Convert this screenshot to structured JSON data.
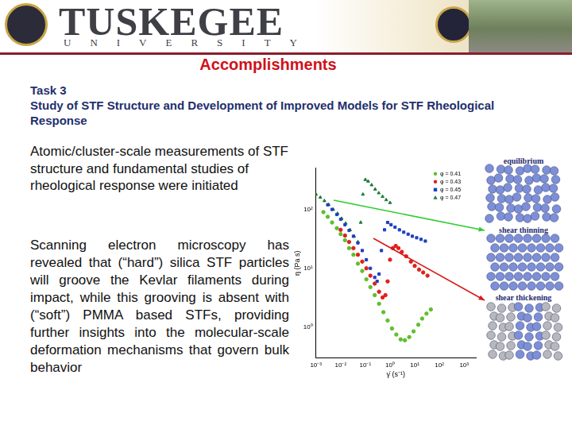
{
  "header": {
    "name": "TUSKEGEE",
    "subtitle": "UNIVERSITY"
  },
  "title": "Accomplishments",
  "task": [
    "Task 3",
    "Study of STF Structure and Development of Improved Models for STF Rheological Response"
  ],
  "paragraphs": [
    "Atomic/cluster-scale measurements of STF structure and fundamental studies of rheological response were initiated",
    "Scanning electron microscopy has revealed that (“hard”) silica STF particles will groove the Kevlar filaments during impact, while this grooving is absent with (“soft”) PMMA based STFs, providing further insights into the molecular-scale deformation mechanisms that govern bulk behavior"
  ],
  "chart_data": {
    "type": "scatter",
    "log": true,
    "grid": false,
    "legend": "top-right",
    "x_label": "γ̇ (s⁻¹)",
    "y_label": "η (Pa s)",
    "xlim": [
      0.001,
      3000
    ],
    "ylim": [
      0.3,
      500
    ],
    "xticks": [
      {
        "value": 0.001,
        "label": "10⁻³"
      },
      {
        "value": 0.01,
        "label": "10⁻²"
      },
      {
        "value": 0.1,
        "label": "10⁻¹"
      },
      {
        "value": 1,
        "label": "10⁰"
      },
      {
        "value": 10,
        "label": "10¹"
      },
      {
        "value": 100,
        "label": "10²"
      },
      {
        "value": 1000,
        "label": "10³"
      }
    ],
    "yticks": [
      {
        "value": 1,
        "label": "10⁰"
      },
      {
        "value": 10,
        "label": "10¹"
      },
      {
        "value": 100,
        "label": "10²"
      }
    ],
    "series": [
      {
        "name": "φ = 0.41",
        "color": "#5cc02c",
        "marker": "circle",
        "x": [
          0.002,
          0.003,
          0.0045,
          0.007,
          0.01,
          0.015,
          0.022,
          0.033,
          0.05,
          0.075,
          0.11,
          0.16,
          0.24,
          0.36,
          0.54,
          0.8,
          1.2,
          1.8,
          2.7,
          4,
          6,
          9,
          14,
          20,
          30,
          45
        ],
        "values": [
          90,
          75,
          60,
          48,
          38,
          30,
          22,
          17,
          12,
          9,
          6.5,
          4.8,
          3.5,
          2.5,
          1.8,
          1.3,
          0.95,
          0.75,
          0.62,
          0.6,
          0.68,
          0.85,
          1.1,
          1.4,
          1.7,
          2.0
        ]
      },
      {
        "name": "φ = 0.43",
        "color": "#e0201c",
        "marker": "circle",
        "x": [
          0.01,
          0.015,
          0.022,
          0.033,
          0.05,
          0.075,
          0.11,
          0.16,
          0.24,
          0.36,
          0.5,
          0.65,
          0.8,
          1,
          1.3,
          1.7,
          2.2,
          3,
          4.5,
          7,
          10,
          15,
          22,
          33
        ],
        "values": [
          45,
          36,
          28,
          22,
          17,
          13,
          10,
          7.5,
          5.5,
          4,
          3.2,
          3.5,
          6,
          14,
          22,
          24,
          22,
          19,
          16,
          13,
          11,
          9.5,
          8.5,
          7.5
        ]
      },
      {
        "name": "φ = 0.45",
        "color": "#1f3fbf",
        "marker": "square",
        "x": [
          0.003,
          0.0045,
          0.007,
          0.01,
          0.015,
          0.022,
          0.033,
          0.05,
          0.075,
          0.11,
          0.16,
          0.24,
          0.3,
          0.36,
          0.45,
          0.6,
          0.8,
          1.1,
          1.6,
          2.4,
          3.6,
          5.4,
          8,
          12,
          18,
          27
        ],
        "values": [
          120,
          100,
          82,
          68,
          55,
          44,
          35,
          27,
          20,
          14,
          10,
          7,
          6,
          8,
          20,
          45,
          60,
          55,
          50,
          45,
          41,
          38,
          35,
          33,
          31,
          29
        ]
      },
      {
        "name": "φ = 0.47",
        "color": "#1f7a3a",
        "marker": "triangle",
        "x": [
          0.001,
          0.0015,
          0.0022,
          0.0033,
          0.005,
          0.0075,
          0.011,
          0.016,
          0.024,
          0.035,
          0.05,
          0.065,
          0.08,
          0.1,
          0.13,
          0.18,
          0.25,
          0.35,
          0.5,
          0.7,
          1.0
        ],
        "values": [
          180,
          160,
          140,
          120,
          100,
          85,
          70,
          58,
          45,
          35,
          28,
          60,
          180,
          320,
          300,
          260,
          220,
          190,
          165,
          145,
          130
        ]
      }
    ]
  },
  "panels": [
    "equilibrium",
    "shear thinning",
    "shear thickening"
  ]
}
